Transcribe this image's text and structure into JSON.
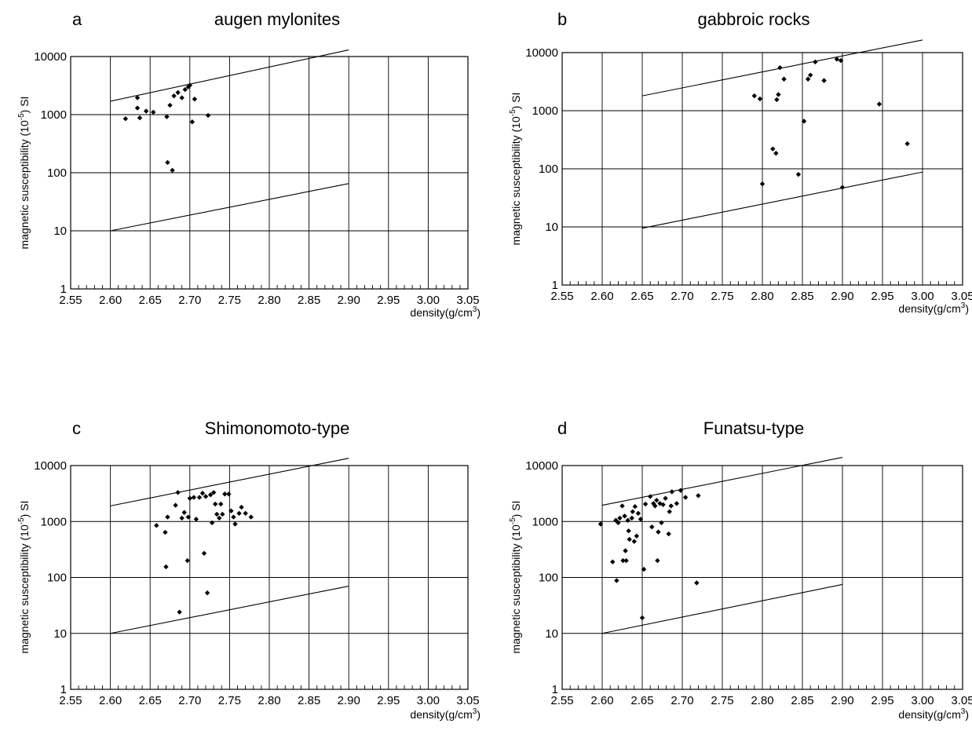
{
  "figure": {
    "x_axis_label": "density(g/cm",
    "x_axis_label_sup": "3",
    "x_axis_label_close": ")",
    "y_axis_label_prefix": "magnetic susceptibility (10",
    "y_axis_label_sup": "-5",
    "y_axis_label_suffix": ") SI",
    "x_tick_labels": [
      "2.55",
      "2.60",
      "2.65",
      "2.70",
      "2.75",
      "2.80",
      "2.85",
      "2.90",
      "2.95",
      "3.00",
      "3.05"
    ],
    "y_tick_labels": [
      "1",
      "10",
      "100",
      "1000",
      "10000"
    ]
  },
  "chart_data": [
    {
      "type": "scatter",
      "panel": "a",
      "title": "augen mylonites",
      "xlabel": "density(g/cm3)",
      "ylabel": "magnetic susceptibility (10-5) SI",
      "xlim": [
        2.55,
        3.05
      ],
      "ylim": [
        1,
        10000
      ],
      "yscale": "log",
      "grid": true,
      "reference_lines": [
        {
          "x": [
            2.6,
            2.9
          ],
          "y": [
            1700,
            13000
          ]
        },
        {
          "x": [
            2.6,
            2.9
          ],
          "y": [
            10,
            65
          ]
        }
      ],
      "points": [
        {
          "x": 2.619,
          "y": 850
        },
        {
          "x": 2.634,
          "y": 1950
        },
        {
          "x": 2.634,
          "y": 1300
        },
        {
          "x": 2.637,
          "y": 880
        },
        {
          "x": 2.645,
          "y": 1150
        },
        {
          "x": 2.654,
          "y": 1100
        },
        {
          "x": 2.671,
          "y": 920
        },
        {
          "x": 2.675,
          "y": 1450
        },
        {
          "x": 2.68,
          "y": 2100
        },
        {
          "x": 2.685,
          "y": 2400
        },
        {
          "x": 2.69,
          "y": 1950
        },
        {
          "x": 2.694,
          "y": 2700
        },
        {
          "x": 2.698,
          "y": 3000
        },
        {
          "x": 2.7,
          "y": 3200
        },
        {
          "x": 2.703,
          "y": 750
        },
        {
          "x": 2.706,
          "y": 1850
        },
        {
          "x": 2.723,
          "y": 970
        },
        {
          "x": 2.672,
          "y": 150
        },
        {
          "x": 2.678,
          "y": 110
        }
      ]
    },
    {
      "type": "scatter",
      "panel": "b",
      "title": "gabbroic rocks",
      "xlabel": "density(g/cm3)",
      "ylabel": "magnetic susceptibility (10-5) SI",
      "xlim": [
        2.55,
        3.05
      ],
      "ylim": [
        1,
        10000
      ],
      "yscale": "log",
      "grid": true,
      "reference_lines": [
        {
          "x": [
            2.65,
            3.0
          ],
          "y": [
            1800,
            16500
          ]
        },
        {
          "x": [
            2.65,
            3.0
          ],
          "y": [
            9.5,
            88
          ]
        }
      ],
      "points": [
        {
          "x": 2.79,
          "y": 1800
        },
        {
          "x": 2.797,
          "y": 1600
        },
        {
          "x": 2.8,
          "y": 55
        },
        {
          "x": 2.813,
          "y": 220
        },
        {
          "x": 2.817,
          "y": 185
        },
        {
          "x": 2.818,
          "y": 1550
        },
        {
          "x": 2.82,
          "y": 1900
        },
        {
          "x": 2.822,
          "y": 5500
        },
        {
          "x": 2.827,
          "y": 3500
        },
        {
          "x": 2.845,
          "y": 80
        },
        {
          "x": 2.852,
          "y": 660
        },
        {
          "x": 2.857,
          "y": 3500
        },
        {
          "x": 2.86,
          "y": 4100
        },
        {
          "x": 2.866,
          "y": 6900
        },
        {
          "x": 2.877,
          "y": 3300
        },
        {
          "x": 2.893,
          "y": 7700
        },
        {
          "x": 2.898,
          "y": 7300
        },
        {
          "x": 2.9,
          "y": 48
        },
        {
          "x": 2.946,
          "y": 1300
        },
        {
          "x": 2.981,
          "y": 270
        }
      ]
    },
    {
      "type": "scatter",
      "panel": "c",
      "title": "Shimonomoto-type",
      "xlabel": "density(g/cm3)",
      "ylabel": "magnetic susceptibility (10-5) SI",
      "xlim": [
        2.55,
        3.05
      ],
      "ylim": [
        1,
        10000
      ],
      "yscale": "log",
      "grid": true,
      "reference_lines": [
        {
          "x": [
            2.6,
            2.9
          ],
          "y": [
            1900,
            13500
          ]
        },
        {
          "x": [
            2.6,
            2.9
          ],
          "y": [
            10,
            70
          ]
        }
      ],
      "points": [
        {
          "x": 2.658,
          "y": 850
        },
        {
          "x": 2.669,
          "y": 640
        },
        {
          "x": 2.67,
          "y": 155
        },
        {
          "x": 2.672,
          "y": 1200
        },
        {
          "x": 2.682,
          "y": 1950
        },
        {
          "x": 2.685,
          "y": 3300
        },
        {
          "x": 2.687,
          "y": 24
        },
        {
          "x": 2.69,
          "y": 1150
        },
        {
          "x": 2.693,
          "y": 1450
        },
        {
          "x": 2.697,
          "y": 200
        },
        {
          "x": 2.698,
          "y": 1200
        },
        {
          "x": 2.7,
          "y": 2600
        },
        {
          "x": 2.705,
          "y": 2700
        },
        {
          "x": 2.708,
          "y": 1100
        },
        {
          "x": 2.712,
          "y": 2700
        },
        {
          "x": 2.716,
          "y": 3200
        },
        {
          "x": 2.718,
          "y": 270
        },
        {
          "x": 2.72,
          "y": 2800
        },
        {
          "x": 2.722,
          "y": 53
        },
        {
          "x": 2.726,
          "y": 3000
        },
        {
          "x": 2.728,
          "y": 950
        },
        {
          "x": 2.73,
          "y": 3300
        },
        {
          "x": 2.732,
          "y": 2050
        },
        {
          "x": 2.734,
          "y": 1350
        },
        {
          "x": 2.737,
          "y": 1150
        },
        {
          "x": 2.739,
          "y": 2050
        },
        {
          "x": 2.741,
          "y": 1350
        },
        {
          "x": 2.744,
          "y": 3100
        },
        {
          "x": 2.749,
          "y": 3100
        },
        {
          "x": 2.752,
          "y": 1550
        },
        {
          "x": 2.755,
          "y": 1200
        },
        {
          "x": 2.757,
          "y": 900
        },
        {
          "x": 2.762,
          "y": 1400
        },
        {
          "x": 2.765,
          "y": 1800
        },
        {
          "x": 2.77,
          "y": 1400
        },
        {
          "x": 2.777,
          "y": 1200
        }
      ]
    },
    {
      "type": "scatter",
      "panel": "d",
      "title": "Funatsu-type",
      "xlabel": "density(g/cm3)",
      "ylabel": "magnetic susceptibility (10-5) SI",
      "xlim": [
        2.55,
        3.05
      ],
      "ylim": [
        1,
        10000
      ],
      "yscale": "log",
      "grid": true,
      "reference_lines": [
        {
          "x": [
            2.6,
            2.9
          ],
          "y": [
            1950,
            14000
          ]
        },
        {
          "x": [
            2.6,
            2.9
          ],
          "y": [
            10,
            75
          ]
        }
      ],
      "points": [
        {
          "x": 2.598,
          "y": 900
        },
        {
          "x": 2.613,
          "y": 190
        },
        {
          "x": 2.617,
          "y": 1050
        },
        {
          "x": 2.618,
          "y": 88
        },
        {
          "x": 2.62,
          "y": 950
        },
        {
          "x": 2.622,
          "y": 1150
        },
        {
          "x": 2.625,
          "y": 1900
        },
        {
          "x": 2.626,
          "y": 200
        },
        {
          "x": 2.628,
          "y": 1250
        },
        {
          "x": 2.629,
          "y": 300
        },
        {
          "x": 2.63,
          "y": 200
        },
        {
          "x": 2.632,
          "y": 1050
        },
        {
          "x": 2.633,
          "y": 680
        },
        {
          "x": 2.634,
          "y": 480
        },
        {
          "x": 2.637,
          "y": 1150
        },
        {
          "x": 2.638,
          "y": 1500
        },
        {
          "x": 2.64,
          "y": 440
        },
        {
          "x": 2.641,
          "y": 1850
        },
        {
          "x": 2.643,
          "y": 550
        },
        {
          "x": 2.645,
          "y": 1400
        },
        {
          "x": 2.648,
          "y": 1100
        },
        {
          "x": 2.65,
          "y": 19
        },
        {
          "x": 2.652,
          "y": 140
        },
        {
          "x": 2.654,
          "y": 2050
        },
        {
          "x": 2.66,
          "y": 2800
        },
        {
          "x": 2.662,
          "y": 800
        },
        {
          "x": 2.664,
          "y": 2100
        },
        {
          "x": 2.666,
          "y": 1900
        },
        {
          "x": 2.668,
          "y": 2400
        },
        {
          "x": 2.669,
          "y": 200
        },
        {
          "x": 2.67,
          "y": 650
        },
        {
          "x": 2.672,
          "y": 2100
        },
        {
          "x": 2.674,
          "y": 950
        },
        {
          "x": 2.676,
          "y": 2000
        },
        {
          "x": 2.679,
          "y": 2600
        },
        {
          "x": 2.683,
          "y": 600
        },
        {
          "x": 2.684,
          "y": 1500
        },
        {
          "x": 2.686,
          "y": 1900
        },
        {
          "x": 2.687,
          "y": 3400
        },
        {
          "x": 2.693,
          "y": 2100
        },
        {
          "x": 2.698,
          "y": 3600
        },
        {
          "x": 2.704,
          "y": 2700
        },
        {
          "x": 2.718,
          "y": 80
        },
        {
          "x": 2.72,
          "y": 2900
        }
      ]
    }
  ]
}
